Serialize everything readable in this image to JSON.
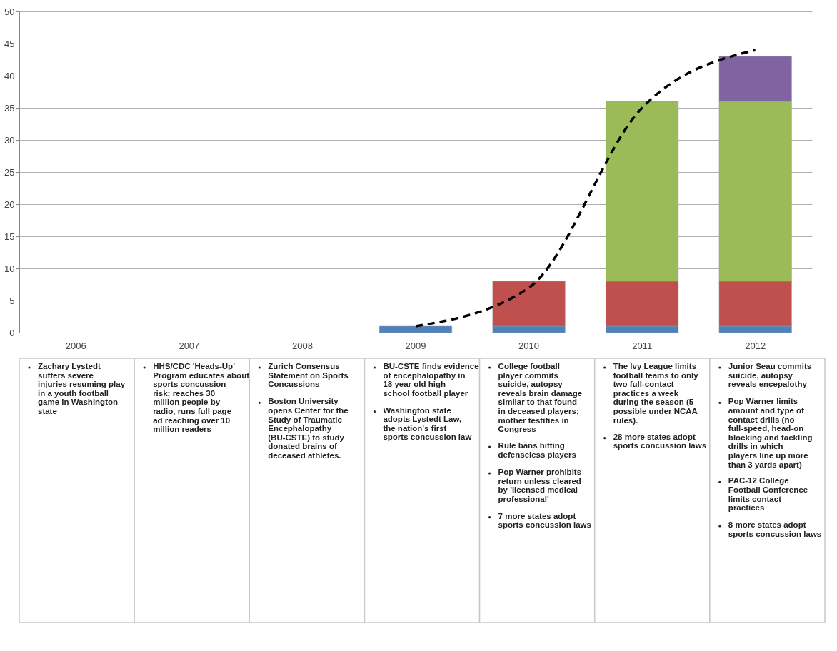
{
  "chart_data": {
    "type": "bar",
    "stacked": true,
    "categories": [
      "2006",
      "2007",
      "2008",
      "2009",
      "2010",
      "2011",
      "2012"
    ],
    "series": [
      {
        "color": "#4f81bd",
        "values": [
          null,
          null,
          null,
          1,
          1,
          1,
          1
        ]
      },
      {
        "color": "#c0504d",
        "values": [
          null,
          null,
          null,
          null,
          7,
          7,
          7
        ]
      },
      {
        "color": "#9bbb59",
        "values": [
          null,
          null,
          null,
          null,
          null,
          28,
          28
        ]
      },
      {
        "color": "#8064a2",
        "values": [
          null,
          null,
          null,
          null,
          null,
          null,
          7
        ]
      },
      {
        "type": "line",
        "color": "#000000",
        "line_style": "dashed",
        "values": [
          null,
          null,
          null,
          1,
          7,
          35,
          44
        ]
      }
    ],
    "ylim": [
      0,
      50
    ],
    "yticks": [
      0,
      5,
      10,
      15,
      20,
      25,
      30,
      35,
      40,
      45,
      50
    ],
    "grid": "y",
    "annotations": [
      "Zachary Lystedt suffers severe injuries resuming play in a youth football game in Washington state",
      "HHS/CDC 'Heads-Up' Program educates about sports concussion risk; reaches 30 million people by radio, runs full page ad reaching over 10 million readers",
      "Zurich Consensus Statement on Sports Concussions\nBoston University opens Center for the Study of Traumatic Encephalopathy (BU-CSTE) to study donated brains of deceased athletes.",
      "BU-CSTE finds evidence of encephalopathy in 18 year old high school football player\nWashington state adopts Lystedt Law, the nation's first sports concussion law",
      "College football player commits suicide, autopsy reveals brain damage similar to that found in deceased players; mother testifies in Congress\nRule bans hitting defenseless players\nPop Warner prohibits return unless cleared by 'licensed medical professional'\n7 more states adopt sports concussion laws",
      "The Ivy League limits football teams to only two full-contact practices a week during the season (5 possible under NCAA rules).\n28 more states adopt sports concussion laws",
      "Junior Seau commits suicide, autopsy reveals encepalothy\nPop Warner limits amount and type of contact drills (no full-speed, head-on blocking and tackling drills in which players line up more than 3 yards apart)\nPAC-12 College Football Conference limits contact practices\n8 more states adopt sports concussion laws"
    ]
  }
}
